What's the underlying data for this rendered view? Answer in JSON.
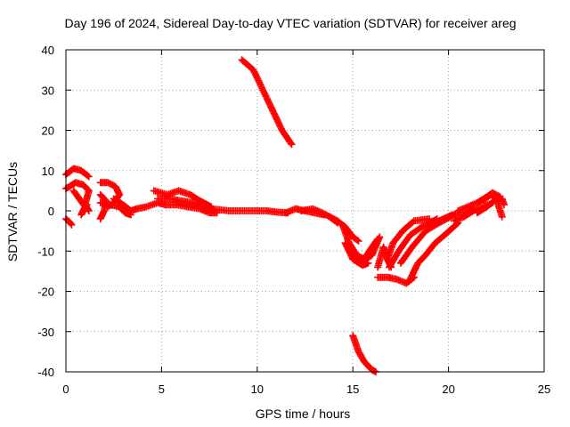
{
  "chart_data": {
    "type": "scatter",
    "title": "Day 196 of 2024, Sidereal Day-to-day VTEC variation (SDTVAR) for receiver areg",
    "xlabel": "GPS time / hours",
    "ylabel": "SDTVAR / TECUs",
    "xlim": [
      0,
      25
    ],
    "ylim": [
      -40,
      40
    ],
    "xticks": [
      0,
      5,
      10,
      15,
      20,
      25
    ],
    "yticks": [
      -40,
      -30,
      -20,
      -10,
      0,
      10,
      20,
      30,
      40
    ],
    "grid": true,
    "marker": "+",
    "color": "#ff0000",
    "series": [
      {
        "name": "upper-left-cluster",
        "segments": [
          [
            [
              0.0,
              9.0
            ],
            [
              0.4,
              10.5
            ],
            [
              0.8,
              10.0
            ],
            [
              1.2,
              8.5
            ]
          ],
          [
            [
              0.0,
              5.5
            ],
            [
              0.5,
              7.0
            ],
            [
              0.9,
              6.5
            ],
            [
              1.2,
              5.0
            ],
            [
              1.0,
              1.5
            ],
            [
              1.2,
              0.0
            ]
          ],
          [
            [
              0.0,
              -2.0
            ],
            [
              0.2,
              -2.8
            ],
            [
              0.3,
              -3.5
            ]
          ],
          [
            [
              0.4,
              5.0
            ],
            [
              1.0,
              1.0
            ],
            [
              0.8,
              -1.0
            ],
            [
              1.1,
              1.5
            ]
          ]
        ]
      },
      {
        "name": "early-wave",
        "segments": [
          [
            [
              1.8,
              7.0
            ],
            [
              2.2,
              7.0
            ],
            [
              2.6,
              6.0
            ],
            [
              2.8,
              4.0
            ],
            [
              2.5,
              2.0
            ],
            [
              2.2,
              1.0
            ]
          ],
          [
            [
              1.8,
              2.0
            ],
            [
              2.3,
              1.5
            ],
            [
              2.8,
              1.0
            ],
            [
              3.1,
              -0.5
            ],
            [
              3.4,
              -1.0
            ]
          ],
          [
            [
              1.8,
              4.0
            ],
            [
              2.1,
              2.5
            ],
            [
              2.0,
              0.0
            ],
            [
              1.9,
              -1.0
            ],
            [
              1.8,
              -2.0
            ]
          ],
          [
            [
              2.5,
              3.0
            ],
            [
              3.0,
              1.5
            ],
            [
              3.4,
              0.0
            ],
            [
              3.7,
              0.5
            ],
            [
              4.2,
              1.0
            ],
            [
              4.8,
              2.0
            ],
            [
              5.2,
              1.5
            ]
          ]
        ]
      },
      {
        "name": "mid-band",
        "segments": [
          [
            [
              4.6,
              5.0
            ],
            [
              5.3,
              4.0
            ],
            [
              5.9,
              5.0
            ],
            [
              6.5,
              4.0
            ],
            [
              7.0,
              2.5
            ],
            [
              7.6,
              1.0
            ]
          ],
          [
            [
              4.8,
              3.0
            ],
            [
              5.4,
              3.0
            ],
            [
              6.0,
              2.5
            ],
            [
              6.6,
              2.0
            ],
            [
              7.2,
              1.5
            ],
            [
              7.7,
              0.0
            ]
          ],
          [
            [
              5.2,
              1.5
            ],
            [
              5.8,
              1.5
            ],
            [
              6.4,
              1.0
            ],
            [
              7.0,
              0.5
            ],
            [
              7.5,
              -0.5
            ],
            [
              7.9,
              -0.5
            ]
          ],
          [
            [
              7.6,
              0.5
            ],
            [
              8.5,
              0.0
            ],
            [
              9.5,
              0.0
            ],
            [
              10.5,
              0.0
            ],
            [
              11.0,
              -0.3
            ],
            [
              11.6,
              -0.5
            ]
          ],
          [
            [
              11.5,
              -0.5
            ],
            [
              12.0,
              0.5
            ],
            [
              12.5,
              0.0
            ],
            [
              13.0,
              -0.5
            ],
            [
              13.5,
              -1.0
            ]
          ],
          [
            [
              12.3,
              0.0
            ],
            [
              12.9,
              0.5
            ],
            [
              13.4,
              -0.5
            ],
            [
              13.8,
              -1.5
            ],
            [
              14.2,
              -3.0
            ]
          ]
        ]
      },
      {
        "name": "steep-upper-track",
        "segments": [
          [
            [
              9.2,
              37.5
            ],
            [
              9.8,
              35.0
            ],
            [
              10.3,
              30.0
            ],
            [
              10.8,
              25.0
            ],
            [
              11.3,
              20.0
            ],
            [
              11.8,
              16.5
            ]
          ]
        ]
      },
      {
        "name": "steep-lower-track",
        "segments": [
          [
            [
              15.0,
              -31.0
            ],
            [
              15.3,
              -35.0
            ],
            [
              15.6,
              -37.5
            ],
            [
              16.0,
              -39.5
            ],
            [
              16.2,
              -40.0
            ]
          ]
        ]
      },
      {
        "name": "dip-region",
        "segments": [
          [
            [
              13.8,
              -1.5
            ],
            [
              14.2,
              -2.5
            ],
            [
              14.6,
              -4.0
            ],
            [
              15.0,
              -6.5
            ],
            [
              15.3,
              -7.5
            ]
          ],
          [
            [
              14.5,
              -4.0
            ],
            [
              14.8,
              -8.0
            ],
            [
              15.2,
              -11.0
            ],
            [
              15.6,
              -12.0
            ],
            [
              16.0,
              -9.0
            ],
            [
              16.3,
              -7.0
            ]
          ],
          [
            [
              14.6,
              -8.0
            ],
            [
              15.0,
              -12.0
            ],
            [
              15.5,
              -13.5
            ],
            [
              15.8,
              -13.0
            ]
          ],
          [
            [
              15.0,
              -10.0
            ],
            [
              15.5,
              -12.5
            ],
            [
              16.0,
              -11.0
            ],
            [
              16.4,
              -6.5
            ]
          ],
          [
            [
              16.3,
              -14.0
            ],
            [
              16.6,
              -9.0
            ],
            [
              16.8,
              -12.0
            ],
            [
              17.0,
              -14.0
            ]
          ],
          [
            [
              16.3,
              -16.5
            ],
            [
              16.8,
              -16.5
            ],
            [
              17.3,
              -17.0
            ],
            [
              17.8,
              -18.0
            ],
            [
              18.2,
              -16.5
            ]
          ],
          [
            [
              16.8,
              -12.0
            ],
            [
              17.1,
              -8.0
            ],
            [
              17.6,
              -5.0
            ],
            [
              18.2,
              -2.5
            ],
            [
              19.0,
              -2.0
            ]
          ],
          [
            [
              16.9,
              -14.0
            ],
            [
              17.4,
              -10.0
            ],
            [
              18.0,
              -6.0
            ],
            [
              18.6,
              -4.0
            ],
            [
              19.4,
              -2.0
            ]
          ],
          [
            [
              17.5,
              -13.0
            ],
            [
              18.1,
              -9.0
            ],
            [
              18.8,
              -5.0
            ],
            [
              19.5,
              -3.0
            ],
            [
              20.3,
              -1.0
            ]
          ],
          [
            [
              18.0,
              -17.0
            ],
            [
              18.4,
              -13.0
            ],
            [
              18.8,
              -11.0
            ],
            [
              19.3,
              -8.0
            ],
            [
              19.8,
              -6.0
            ],
            [
              20.5,
              -3.0
            ]
          ],
          [
            [
              19.5,
              -2.5
            ],
            [
              20.2,
              -1.0
            ],
            [
              20.8,
              -1.0
            ],
            [
              21.3,
              0.5
            ]
          ]
        ]
      },
      {
        "name": "late-rise",
        "segments": [
          [
            [
              20.3,
              -2.5
            ],
            [
              20.8,
              -1.5
            ],
            [
              21.3,
              0.0
            ],
            [
              21.8,
              1.0
            ],
            [
              22.3,
              2.0
            ]
          ],
          [
            [
              20.5,
              0.0
            ],
            [
              21.0,
              1.0
            ],
            [
              21.5,
              2.0
            ],
            [
              22.0,
              3.5
            ],
            [
              22.3,
              4.5
            ],
            [
              22.7,
              3.5
            ]
          ],
          [
            [
              21.5,
              -0.5
            ],
            [
              22.0,
              1.0
            ],
            [
              22.4,
              2.5
            ],
            [
              22.8,
              3.0
            ],
            [
              22.9,
              1.5
            ]
          ],
          [
            [
              21.8,
              2.5
            ],
            [
              22.2,
              4.0
            ],
            [
              22.5,
              3.0
            ],
            [
              22.8,
              -1.5
            ]
          ]
        ]
      }
    ]
  }
}
